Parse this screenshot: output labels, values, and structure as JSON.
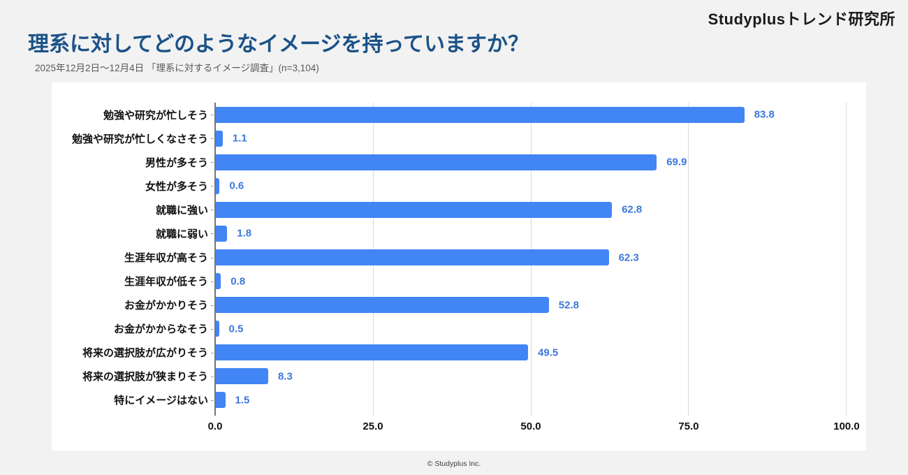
{
  "header": {
    "logo": "Studyplusトレンド研究所",
    "title": "理系に対してどのようなイメージを持っていますか？",
    "subtitle": "2025年12月2日～12月4日 「理系に対するイメージ調査」(n=3,104)"
  },
  "footer": {
    "copyright": "© Studyplus Inc."
  },
  "colors": {
    "page_background": "#f2f2f2",
    "card_background": "#ffffff",
    "bar": "#4285f4",
    "value_label": "#3c78d8",
    "title": "#1b5288",
    "subtitle": "#595959",
    "gridline": "#d9d9d9",
    "axis_line": "#757575",
    "category_label": "#111111"
  },
  "chart_data": {
    "type": "bar",
    "orientation": "horizontal",
    "title": "理系に対してどのようなイメージを持っていますか？",
    "xlabel": "",
    "ylabel": "",
    "xlim": [
      0,
      100
    ],
    "grid": true,
    "value_labels": true,
    "categories": [
      "勉強や研究が忙しそう",
      "勉強や研究が忙しくなさそう",
      "男性が多そう",
      "女性が多そう",
      "就職に強い",
      "就職に弱い",
      "生涯年収が高そう",
      "生涯年収が低そう",
      "お金がかかりそう",
      "お金がかからなそう",
      "将来の選択肢が広がりそう",
      "将来の選択肢が狭まりそう",
      "特にイメージはない"
    ],
    "values": [
      83.8,
      1.1,
      69.9,
      0.6,
      62.8,
      1.8,
      62.3,
      0.8,
      52.8,
      0.5,
      49.5,
      8.3,
      1.5
    ],
    "x_ticks": [
      "0.0",
      "25.0",
      "50.0",
      "75.0",
      "100.0"
    ]
  }
}
